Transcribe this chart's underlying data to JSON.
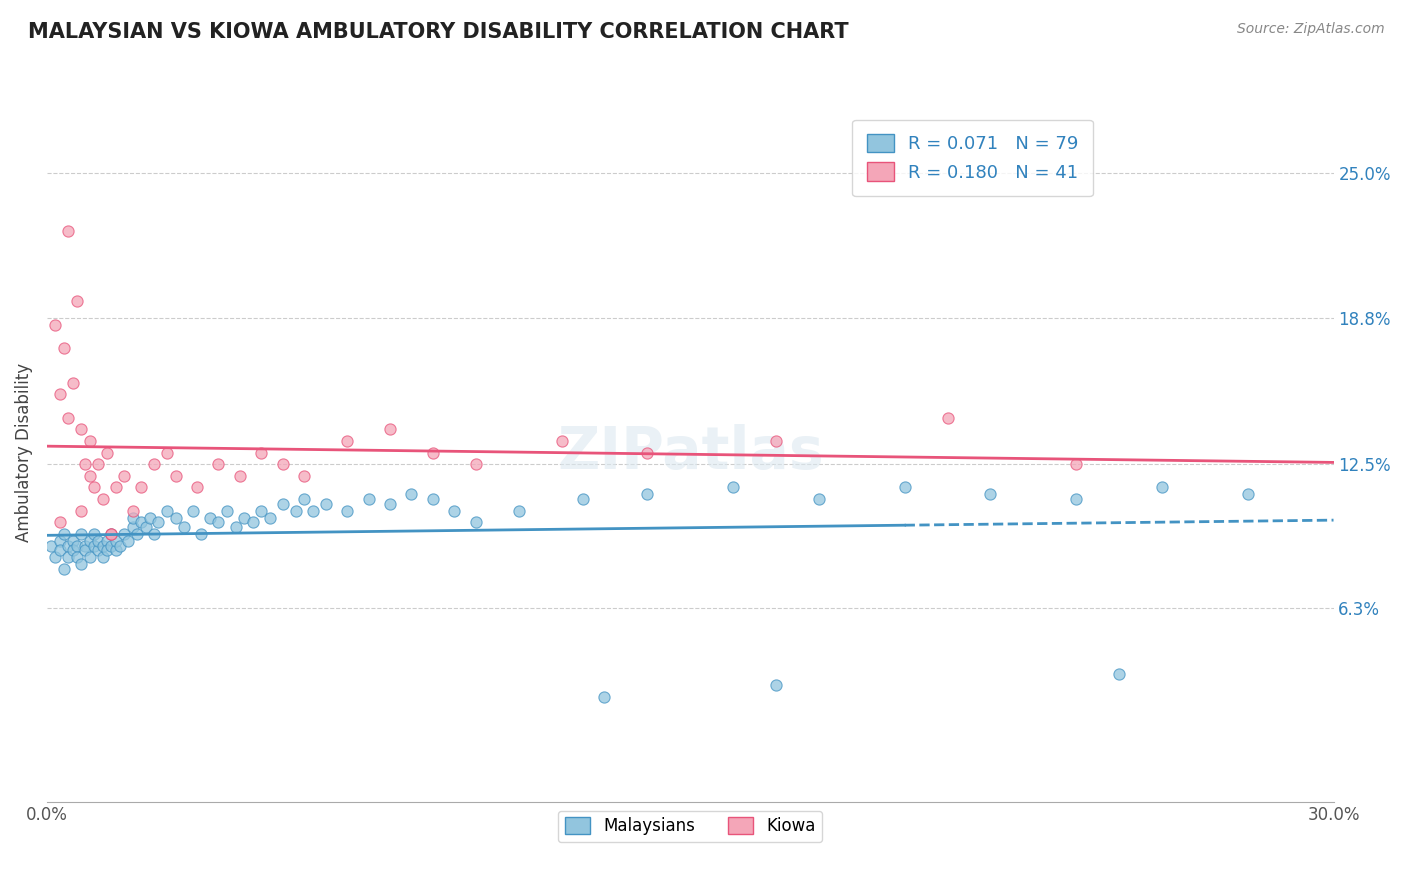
{
  "title": "MALAYSIAN VS KIOWA AMBULATORY DISABILITY CORRELATION CHART",
  "source": "Source: ZipAtlas.com",
  "ylabel": "Ambulatory Disability",
  "legend_label1": "Malaysians",
  "legend_label2": "Kiowa",
  "r1": 0.071,
  "n1": 79,
  "r2": 0.18,
  "n2": 41,
  "xlim": [
    0.0,
    30.0
  ],
  "ylim": [
    -2.0,
    28.0
  ],
  "yticks": [
    6.3,
    12.5,
    18.8,
    25.0
  ],
  "color_blue": "#92c5de",
  "color_pink": "#f4a6b8",
  "color_blue_line": "#4393c3",
  "color_pink_line": "#e8547a",
  "color_text_blue": "#3182bd",
  "malaysian_x": [
    0.1,
    0.2,
    0.3,
    0.3,
    0.4,
    0.4,
    0.5,
    0.5,
    0.6,
    0.6,
    0.7,
    0.7,
    0.8,
    0.8,
    0.9,
    0.9,
    1.0,
    1.0,
    1.1,
    1.1,
    1.2,
    1.2,
    1.3,
    1.3,
    1.4,
    1.4,
    1.5,
    1.5,
    1.6,
    1.6,
    1.7,
    1.8,
    1.9,
    2.0,
    2.0,
    2.1,
    2.2,
    2.3,
    2.4,
    2.5,
    2.6,
    2.8,
    3.0,
    3.2,
    3.4,
    3.6,
    3.8,
    4.0,
    4.2,
    4.4,
    4.6,
    4.8,
    5.0,
    5.2,
    5.5,
    5.8,
    6.0,
    6.2,
    6.5,
    7.0,
    7.5,
    8.0,
    8.5,
    9.0,
    9.5,
    10.0,
    11.0,
    12.5,
    14.0,
    16.0,
    18.0,
    20.0,
    22.0,
    24.0,
    26.0,
    28.0,
    13.0,
    17.0,
    25.0
  ],
  "malaysian_y": [
    9.0,
    8.5,
    9.2,
    8.8,
    9.5,
    8.0,
    9.0,
    8.5,
    9.2,
    8.8,
    9.0,
    8.5,
    9.5,
    8.2,
    9.0,
    8.8,
    9.2,
    8.5,
    9.0,
    9.5,
    8.8,
    9.2,
    8.5,
    9.0,
    9.2,
    8.8,
    9.5,
    9.0,
    8.8,
    9.2,
    9.0,
    9.5,
    9.2,
    9.8,
    10.2,
    9.5,
    10.0,
    9.8,
    10.2,
    9.5,
    10.0,
    10.5,
    10.2,
    9.8,
    10.5,
    9.5,
    10.2,
    10.0,
    10.5,
    9.8,
    10.2,
    10.0,
    10.5,
    10.2,
    10.8,
    10.5,
    11.0,
    10.5,
    10.8,
    10.5,
    11.0,
    10.8,
    11.2,
    11.0,
    10.5,
    10.0,
    10.5,
    11.0,
    11.2,
    11.5,
    11.0,
    11.5,
    11.2,
    11.0,
    11.5,
    11.2,
    2.5,
    3.0,
    3.5
  ],
  "kiowa_x": [
    0.2,
    0.3,
    0.4,
    0.5,
    0.5,
    0.6,
    0.7,
    0.8,
    0.9,
    1.0,
    1.0,
    1.1,
    1.2,
    1.3,
    1.4,
    1.5,
    1.6,
    1.8,
    2.0,
    2.2,
    2.5,
    2.8,
    3.0,
    3.5,
    4.0,
    4.5,
    5.0,
    5.5,
    6.0,
    7.0,
    8.0,
    9.0,
    10.0,
    12.0,
    14.0,
    17.0,
    21.0,
    24.0,
    0.3,
    0.8,
    1.5
  ],
  "kiowa_y": [
    18.5,
    15.5,
    17.5,
    22.5,
    14.5,
    16.0,
    19.5,
    14.0,
    12.5,
    12.0,
    13.5,
    11.5,
    12.5,
    11.0,
    13.0,
    9.5,
    11.5,
    12.0,
    10.5,
    11.5,
    12.5,
    13.0,
    12.0,
    11.5,
    12.5,
    12.0,
    13.0,
    12.5,
    12.0,
    13.5,
    14.0,
    13.0,
    12.5,
    13.5,
    13.0,
    13.5,
    14.5,
    12.5,
    10.0,
    10.5,
    9.5
  ]
}
